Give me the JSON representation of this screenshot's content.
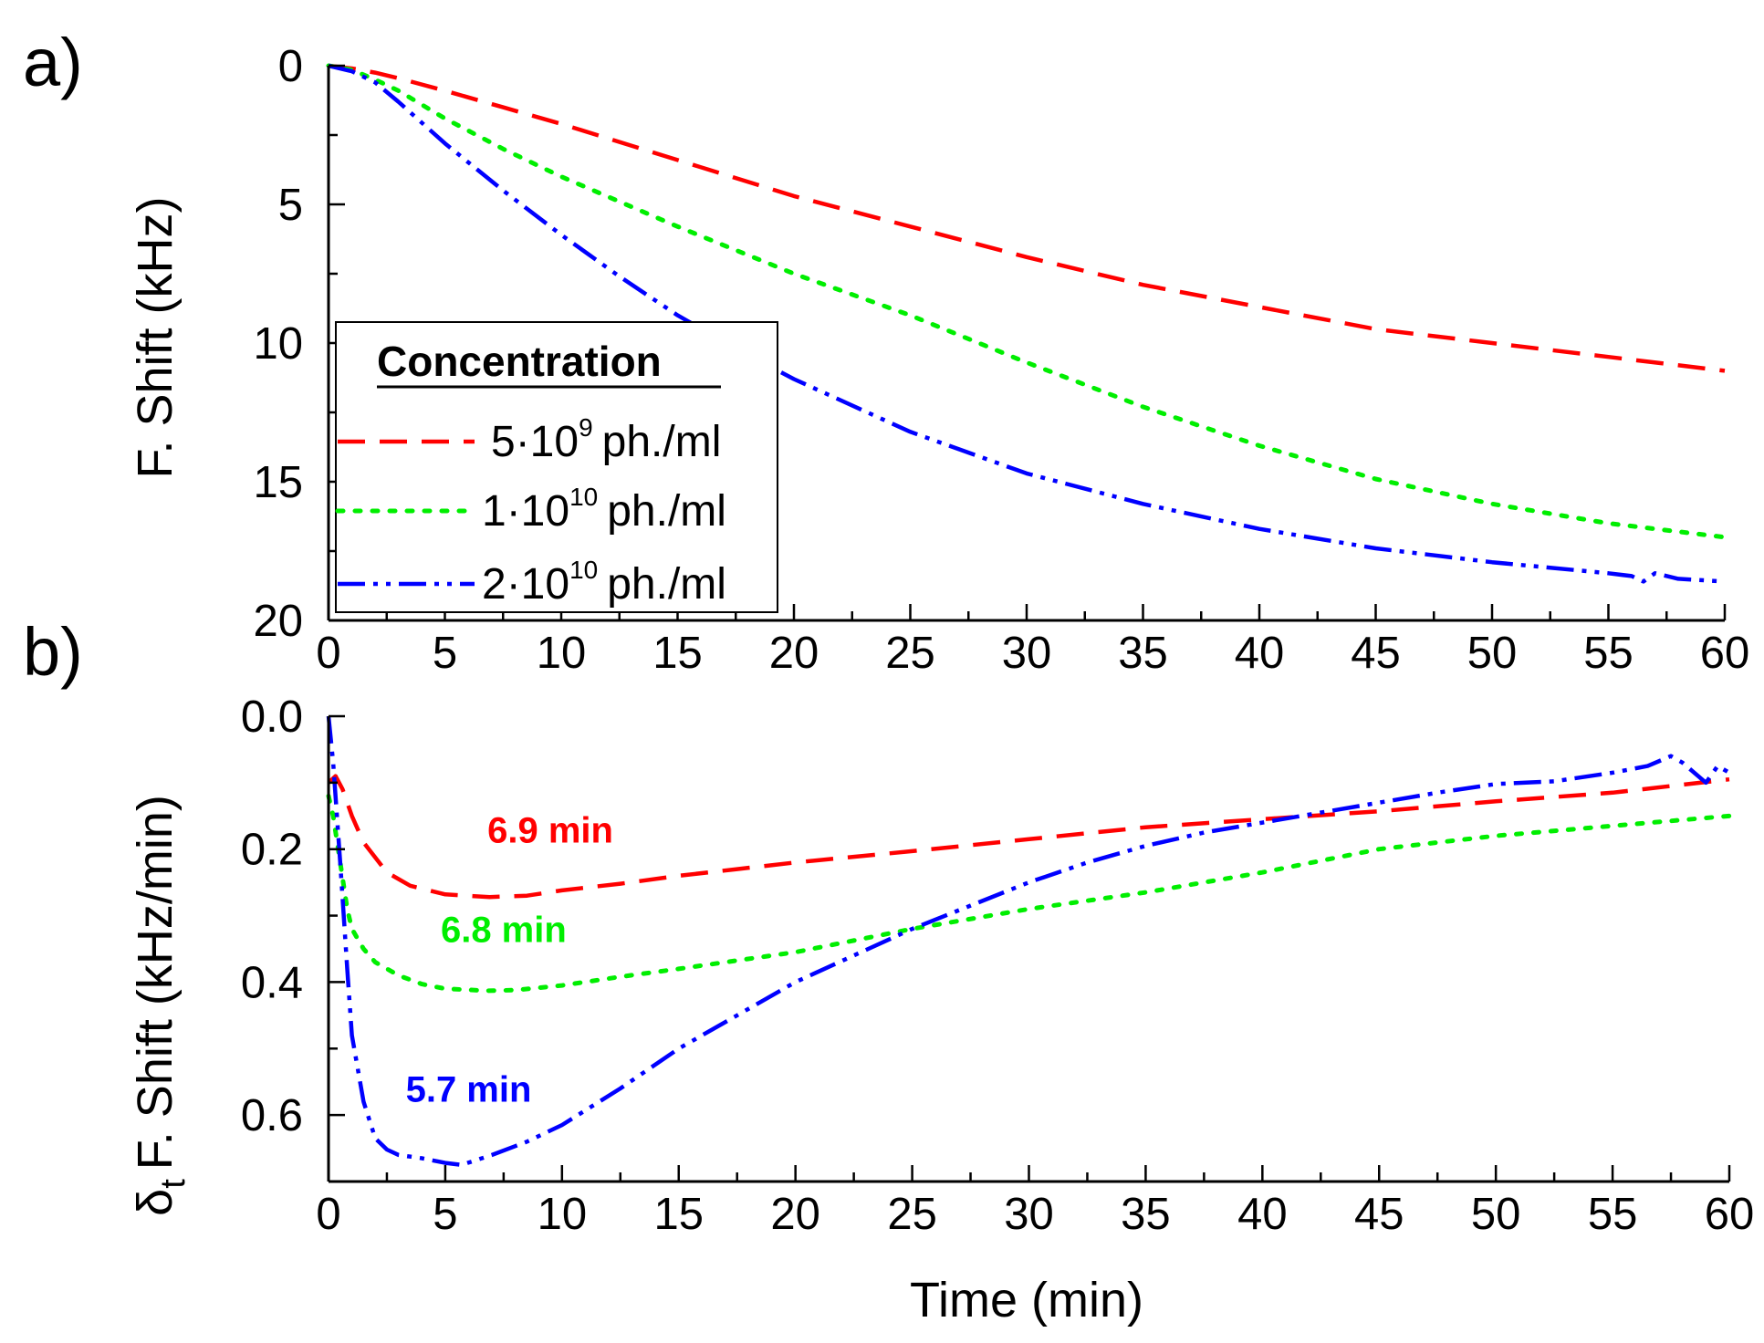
{
  "chart_data": [
    {
      "type": "line",
      "panel_label": "a)",
      "xlabel": "",
      "ylabel": "F. Shift (kHz)",
      "xlim": [
        0,
        60
      ],
      "ylim": [
        0,
        20
      ],
      "y_inverted": true,
      "x_ticks": [
        "0",
        "5",
        "10",
        "15",
        "20",
        "25",
        "30",
        "35",
        "40",
        "45",
        "50",
        "55",
        "60"
      ],
      "y_ticks": [
        "0",
        "5",
        "10",
        "15",
        "20"
      ],
      "grid": false,
      "legend": {
        "title": "Concentration",
        "placement": "bottom-left",
        "entries": [
          {
            "mantissa": "5·10",
            "exp": "9",
            "unit": "ph./ml"
          },
          {
            "mantissa": "1·10",
            "exp": "10",
            "unit": "ph./ml"
          },
          {
            "mantissa": "2·10",
            "exp": "10",
            "unit": "ph./ml"
          }
        ]
      },
      "series": [
        {
          "name": "5·10^9 ph./ml",
          "color": "#ff0000",
          "dash": "dash",
          "x": [
            0,
            1,
            2,
            3,
            5,
            7.5,
            10,
            15,
            20,
            25,
            30,
            35,
            40,
            45,
            50,
            55,
            60
          ],
          "y": [
            0,
            0.1,
            0.25,
            0.45,
            0.9,
            1.5,
            2.1,
            3.4,
            4.7,
            5.8,
            6.9,
            7.9,
            8.7,
            9.5,
            10,
            10.5,
            11
          ]
        },
        {
          "name": "1·10^10 ph./ml",
          "color": "#00ee00",
          "dash": "dot",
          "x": [
            0,
            1,
            2,
            3,
            4,
            5,
            7.5,
            10,
            15,
            20,
            25,
            30,
            35,
            40,
            45,
            50,
            55,
            60
          ],
          "y": [
            0,
            0.15,
            0.5,
            0.9,
            1.4,
            1.9,
            3.0,
            4.0,
            5.8,
            7.5,
            9,
            10.7,
            12.3,
            13.7,
            14.9,
            15.8,
            16.5,
            17
          ]
        },
        {
          "name": "2·10^10 ph./ml",
          "color": "#0000ff",
          "dash": "dashdotdot",
          "x": [
            0,
            1,
            2,
            3,
            5,
            7.5,
            10,
            12.5,
            15,
            17.5,
            20,
            25,
            30,
            35,
            40,
            45,
            50,
            55,
            56,
            56.5,
            57,
            58,
            60
          ],
          "y": [
            0,
            0.2,
            0.6,
            1.3,
            2.8,
            4.5,
            6.1,
            7.6,
            9.0,
            10.2,
            11.3,
            13.2,
            14.7,
            15.8,
            16.7,
            17.4,
            17.9,
            18.3,
            18.4,
            18.6,
            18.3,
            18.5,
            18.6
          ]
        }
      ]
    },
    {
      "type": "line",
      "panel_label": "b)",
      "xlabel": "Time (min)",
      "ylabel": {
        "symbol": "δ",
        "subscript": "t",
        "rest": "F. Shift (kHz/min)"
      },
      "xlim": [
        0,
        60
      ],
      "ylim": [
        0,
        0.7
      ],
      "y_inverted": true,
      "x_ticks": [
        "0",
        "5",
        "10",
        "15",
        "20",
        "25",
        "30",
        "35",
        "40",
        "45",
        "50",
        "55",
        "60"
      ],
      "y_ticks": [
        "0.0",
        "0.2",
        "0.4",
        "0.6"
      ],
      "grid": false,
      "annotations": [
        {
          "text": "6.9 min",
          "color": "#ff0000",
          "x": 9.5,
          "y": 0.19
        },
        {
          "text": "6.8 min",
          "color": "#00ee00",
          "x": 7.5,
          "y": 0.34
        },
        {
          "text": "5.7 min",
          "color": "#0000ff",
          "x": 6.0,
          "y": 0.58
        }
      ],
      "series": [
        {
          "name": "5·10^9 ph./ml",
          "color": "#ff0000",
          "dash": "dash",
          "x": [
            0,
            0.3,
            0.6,
            1,
            1.5,
            2.5,
            3.5,
            5,
            6.9,
            8.5,
            10,
            12.5,
            15,
            17.5,
            20,
            25,
            30,
            35,
            40,
            45,
            50,
            55,
            60
          ],
          "y": [
            0.1,
            0.09,
            0.11,
            0.15,
            0.19,
            0.235,
            0.255,
            0.268,
            0.272,
            0.27,
            0.262,
            0.252,
            0.24,
            0.23,
            0.22,
            0.203,
            0.185,
            0.167,
            0.155,
            0.143,
            0.128,
            0.115,
            0.095
          ]
        },
        {
          "name": "1·10^10 ph./ml",
          "color": "#00ee00",
          "dash": "dot",
          "x": [
            0,
            0.2,
            0.5,
            0.8,
            1,
            1.5,
            2,
            3,
            4,
            5,
            6.8,
            8,
            10,
            12.5,
            15,
            20,
            25,
            30,
            35,
            40,
            45,
            50,
            55,
            60
          ],
          "y": [
            0.12,
            0.15,
            0.22,
            0.29,
            0.32,
            0.35,
            0.37,
            0.39,
            0.403,
            0.41,
            0.413,
            0.412,
            0.405,
            0.392,
            0.38,
            0.355,
            0.32,
            0.29,
            0.265,
            0.235,
            0.2,
            0.18,
            0.165,
            0.15
          ]
        },
        {
          "name": "2·10^10 ph./ml",
          "color": "#0000ff",
          "dash": "dashdotdot",
          "x": [
            0,
            0.2,
            0.5,
            0.8,
            1,
            1.5,
            2,
            2.5,
            3,
            4,
            5,
            5.7,
            7,
            8.5,
            10,
            12.5,
            15,
            17.5,
            20,
            25,
            27.5,
            30,
            32.5,
            35,
            37.5,
            40,
            42.5,
            45,
            47.5,
            50,
            52.5,
            55,
            56.5,
            57.5,
            58,
            59,
            59.5,
            60
          ],
          "y": [
            0,
            0.07,
            0.22,
            0.38,
            0.48,
            0.58,
            0.635,
            0.652,
            0.66,
            0.665,
            0.672,
            0.675,
            0.66,
            0.64,
            0.615,
            0.56,
            0.5,
            0.45,
            0.4,
            0.32,
            0.285,
            0.25,
            0.22,
            0.195,
            0.175,
            0.16,
            0.145,
            0.13,
            0.115,
            0.102,
            0.098,
            0.085,
            0.075,
            0.06,
            0.07,
            0.1,
            0.075,
            0.085
          ]
        }
      ]
    }
  ]
}
